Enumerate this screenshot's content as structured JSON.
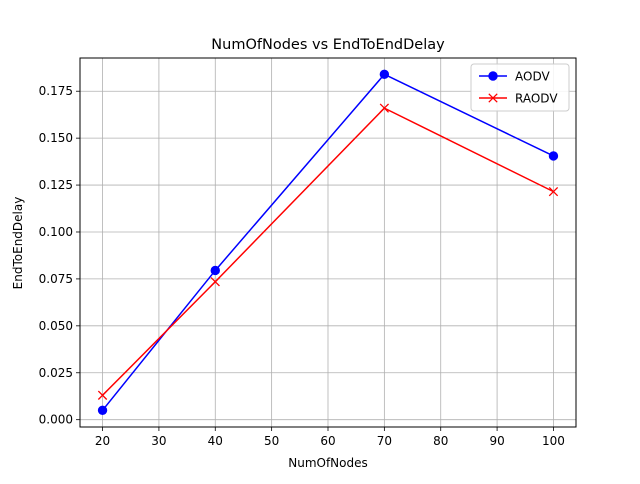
{
  "chart_data": {
    "type": "line",
    "title": "NumOfNodes vs EndToEndDelay",
    "xlabel": "NumOfNodes",
    "ylabel": "EndToEndDelay",
    "xlim": [
      16,
      104
    ],
    "ylim": [
      -0.0039,
      0.1927
    ],
    "xticks": [
      20,
      30,
      40,
      50,
      60,
      70,
      80,
      90,
      100
    ],
    "yticks": [
      0.0,
      0.025,
      0.05,
      0.075,
      0.1,
      0.125,
      0.15,
      0.175
    ],
    "ytick_labels": [
      "0.000",
      "0.025",
      "0.050",
      "0.075",
      "0.100",
      "0.125",
      "0.150",
      "0.175"
    ],
    "grid": true,
    "legend_position": "top-right",
    "series": [
      {
        "name": "AODV",
        "color": "#0000ff",
        "marker": "circle",
        "x": [
          20,
          40,
          70,
          100
        ],
        "y": [
          0.005,
          0.0795,
          0.184,
          0.1405
        ]
      },
      {
        "name": "RAODV",
        "color": "#ff0000",
        "marker": "x",
        "x": [
          20,
          40,
          70,
          100
        ],
        "y": [
          0.013,
          0.0735,
          0.166,
          0.1215
        ]
      }
    ]
  }
}
